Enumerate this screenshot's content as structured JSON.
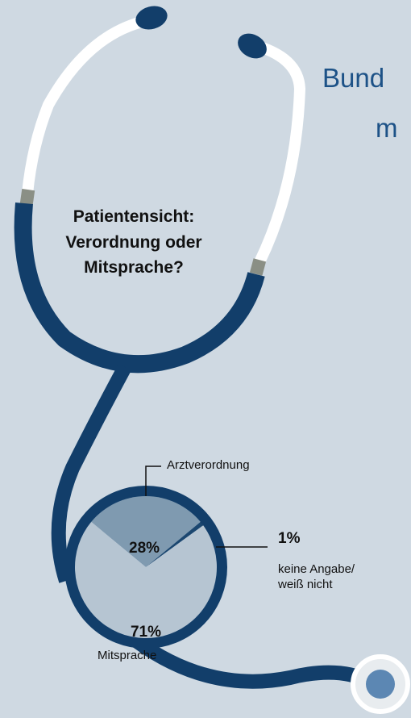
{
  "chart_data": {
    "type": "pie",
    "title_lines": [
      "Bund",
      "m"
    ],
    "subtitle": "Patientensicht: Verordnung oder Mitsprache?",
    "categories": [
      "Arztverordnung",
      "keine Angabe/\nweiß nicht",
      "Mitsprache"
    ],
    "values": [
      28,
      1,
      71
    ],
    "value_labels": [
      "28%",
      "1%",
      "71%"
    ],
    "colors": [
      "#7f9ab0",
      "#1b4770",
      "#b6c5d2"
    ]
  }
}
